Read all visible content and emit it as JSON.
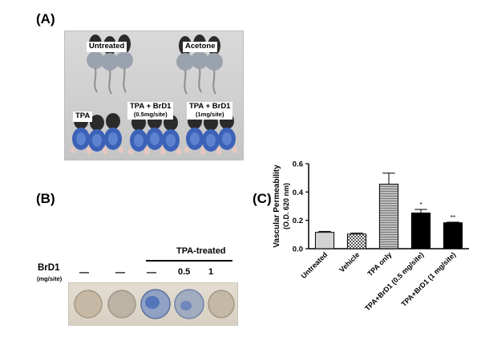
{
  "panels": {
    "a": {
      "label": "(A)",
      "groups": [
        "Untreated",
        "Acetone",
        "TPA"
      ],
      "tpa_brd1_low": {
        "name": "TPA + BrD1",
        "dose": "(0.5mg/site)"
      },
      "tpa_brd1_high": {
        "name": "TPA + BrD1",
        "dose": "(1mg/site)"
      }
    },
    "b": {
      "label": "(B)",
      "header": "TPA-treated",
      "row_label": "BrD1",
      "row_unit": "(mg/site)",
      "dose_marks": [
        "—",
        "—",
        "—",
        "0.5",
        "1"
      ]
    },
    "c": {
      "label": "(C)"
    }
  },
  "colors": {
    "ear_blue": "#3c62b8",
    "mouse_fur": "#2b2b2b",
    "bar_untreated": "#d3d3d3",
    "bar_black": "#000000"
  },
  "chart_data": {
    "type": "bar",
    "categories": [
      "Untreated",
      "Vehicle",
      "TPA only",
      "TPA+BrD1 (0.5 mg/site)",
      "TPA+BrD1 (1 mg/site)"
    ],
    "values": [
      0.115,
      0.103,
      0.455,
      0.252,
      0.183
    ],
    "errors": [
      0.007,
      0.007,
      0.078,
      0.025,
      0.004
    ],
    "significance": [
      "",
      "",
      "",
      "*",
      "**"
    ],
    "fills": [
      "solid-lightgray",
      "checkered",
      "hatched-gray",
      "solid-black",
      "solid-black"
    ],
    "ylabel": "Vascular Permeability",
    "ylabel_sub": "(O.D. 620 nm)",
    "ylim": [
      0,
      0.6
    ],
    "yticks": [
      "0.0",
      "0.2",
      "0.4",
      "0.6"
    ],
    "xlabel": "",
    "title": "",
    "grid": false
  }
}
